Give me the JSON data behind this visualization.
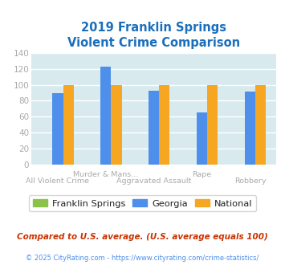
{
  "title_line1": "2019 Franklin Springs",
  "title_line2": "Violent Crime Comparison",
  "cat_top": [
    "",
    "Murder & Mans...",
    "",
    "Rape",
    ""
  ],
  "cat_bot": [
    "All Violent Crime",
    "",
    "Aggravated Assault",
    "",
    "Robbery"
  ],
  "franklin_springs": [
    0,
    0,
    0,
    0,
    0
  ],
  "georgia": [
    90,
    123,
    93,
    65,
    92
  ],
  "national": [
    100,
    100,
    100,
    100,
    100
  ],
  "colors": {
    "franklin_springs": "#8bc34a",
    "georgia": "#4d8fea",
    "national": "#f5a623"
  },
  "ylim": [
    0,
    140
  ],
  "yticks": [
    0,
    20,
    40,
    60,
    80,
    100,
    120,
    140
  ],
  "plot_bg": "#d8eaee",
  "grid_color": "#ffffff",
  "title_color": "#1a6fbd",
  "tick_color": "#aaaaaa",
  "legend_text_color": "#222222",
  "footnote1": "Compared to U.S. average. (U.S. average equals 100)",
  "footnote2": "© 2025 CityRating.com - https://www.cityrating.com/crime-statistics/",
  "footnote1_color": "#cc3300",
  "footnote2_color": "#4d8fea"
}
